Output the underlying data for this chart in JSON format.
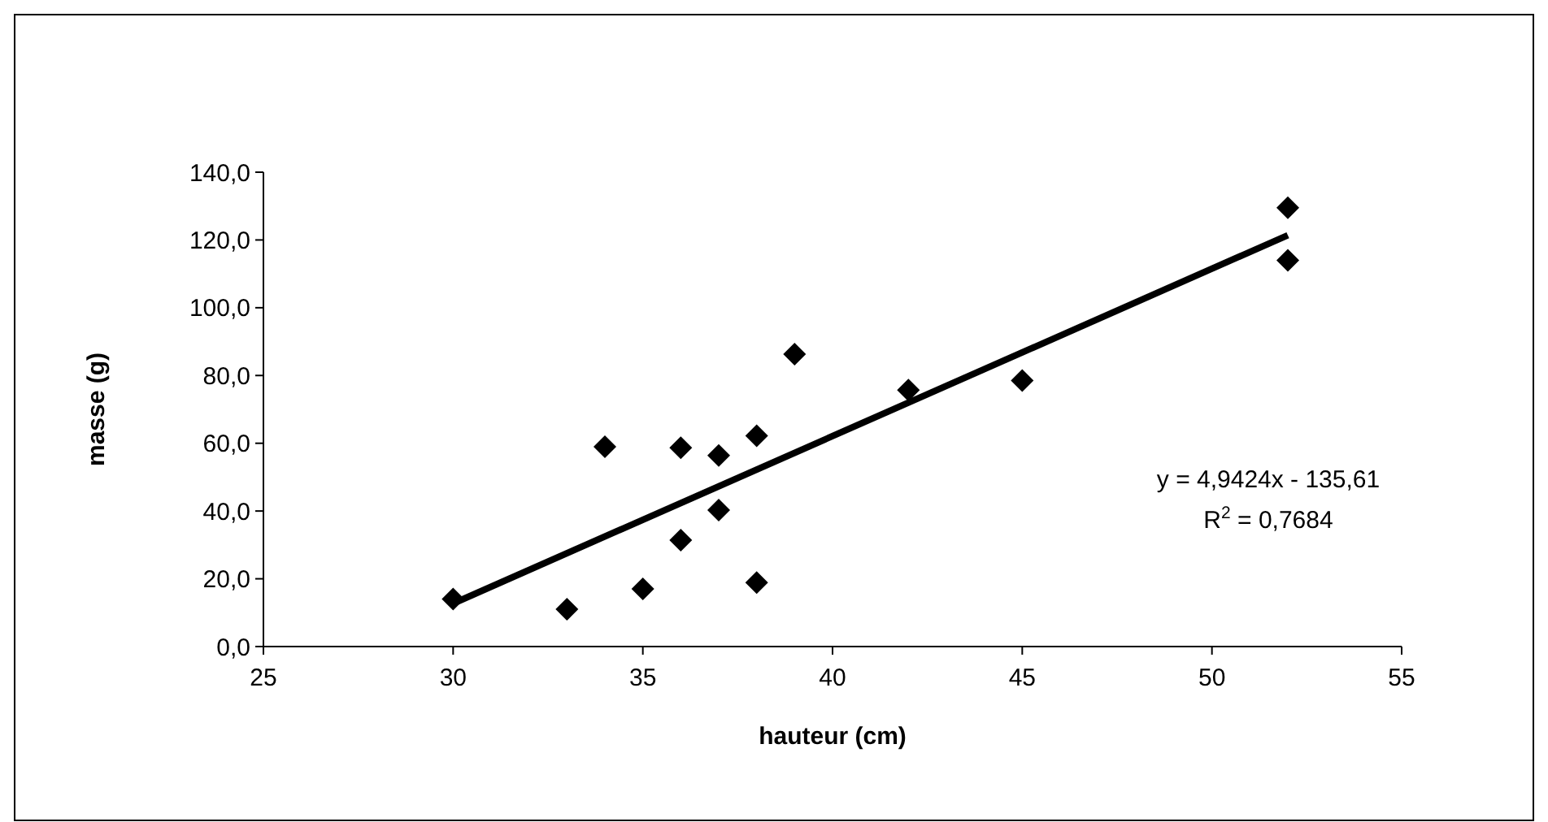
{
  "chart_data": {
    "type": "scatter",
    "xlabel": "hauteur (cm)",
    "ylabel": "masse (g)",
    "xlim": [
      25,
      55
    ],
    "xticks": [
      25,
      30,
      35,
      40,
      45,
      50,
      55
    ],
    "ylim": [
      0,
      140
    ],
    "yticks": [
      {
        "value": 0,
        "label": "0,0"
      },
      {
        "value": 20,
        "label": "20,0"
      },
      {
        "value": 40,
        "label": "40,0"
      },
      {
        "value": 60,
        "label": "60,0"
      },
      {
        "value": 80,
        "label": "80,0"
      },
      {
        "value": 100,
        "label": "100,0"
      },
      {
        "value": 120,
        "label": "120,0"
      },
      {
        "value": 140,
        "label": "140,0"
      }
    ],
    "grid": false,
    "marker": "diamond",
    "series": [
      {
        "color": "#000000",
        "x": [
          30,
          33,
          34,
          35,
          36,
          36,
          37,
          37,
          38,
          38,
          39,
          42,
          45,
          52,
          52
        ],
        "values": [
          14,
          11,
          59,
          17,
          58.7,
          31.4,
          56.4,
          40.3,
          62.2,
          18.9,
          86.3,
          75.7,
          78.5,
          129.5,
          114
        ]
      },
      {
        "type": "line",
        "color": "#000000",
        "line_style": "solid",
        "marker": "none",
        "x": [
          30,
          52
        ],
        "values": [
          12.7,
          121.4
        ]
      }
    ],
    "annotations": [
      "y = 4,9424x - 135,61",
      "R$^{2}$ = 0,7684"
    ]
  }
}
